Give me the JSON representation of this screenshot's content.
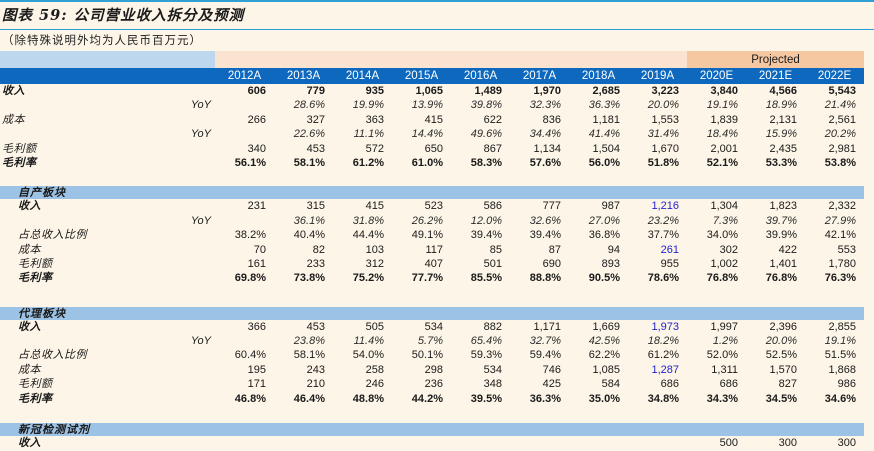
{
  "title": "图表 59:  公司营业收入拆分及预测",
  "subtitle": "（除特殊说明外均为人民币百万元）",
  "projected_label": "Projected",
  "columns": [
    "2012A",
    "2013A",
    "2014A",
    "2015A",
    "2016A",
    "2017A",
    "2018A",
    "2019A",
    "2020E",
    "2021E",
    "2022E"
  ],
  "colors": {
    "page_background": "#FDF6E8",
    "rule_line": "#2FA0D5",
    "header_bar": "#0E69BE",
    "band_label_blue": "#BDD7EE",
    "band_peach": "#FBE3D2",
    "projected_orange": "#F6C8A2",
    "section_bar_blue": "#9CC2E5",
    "highlight_value_blue": "#2222CE"
  },
  "sections": [
    {
      "name": "",
      "rows": [
        {
          "label": "收入",
          "style": "bold",
          "values": [
            "606",
            "779",
            "935",
            "1,065",
            "1,489",
            "1,970",
            "2,685",
            "3,223",
            "3,840",
            "4,566",
            "5,543"
          ]
        },
        {
          "label": "YoY",
          "style": "yoy",
          "values": [
            "",
            "28.6%",
            "19.9%",
            "13.9%",
            "39.8%",
            "32.3%",
            "36.3%",
            "20.0%",
            "19.1%",
            "18.9%",
            "21.4%"
          ]
        },
        {
          "label": "成本",
          "style": "normal",
          "values": [
            "266",
            "327",
            "363",
            "415",
            "622",
            "836",
            "1,181",
            "1,553",
            "1,839",
            "2,131",
            "2,561"
          ]
        },
        {
          "label": "YoY",
          "style": "yoy",
          "values": [
            "",
            "22.6%",
            "11.1%",
            "14.4%",
            "49.6%",
            "34.4%",
            "41.4%",
            "31.4%",
            "18.4%",
            "15.9%",
            "20.2%"
          ]
        },
        {
          "label": "毛利额",
          "style": "normal",
          "values": [
            "340",
            "453",
            "572",
            "650",
            "867",
            "1,134",
            "1,504",
            "1,670",
            "2,001",
            "2,435",
            "2,981"
          ]
        },
        {
          "label": "毛利率",
          "style": "bold",
          "values": [
            "56.1%",
            "58.1%",
            "61.2%",
            "61.0%",
            "58.3%",
            "57.6%",
            "56.0%",
            "51.8%",
            "52.1%",
            "53.3%",
            "53.8%"
          ]
        }
      ]
    },
    {
      "name": "自产板块",
      "rows": [
        {
          "label": "收入",
          "style": "label-bold",
          "values": [
            "231",
            "315",
            "415",
            "523",
            "586",
            "777",
            "987",
            "1,216",
            "1,304",
            "1,823",
            "2,332"
          ],
          "blue_cols": [
            7
          ]
        },
        {
          "label": "YoY",
          "style": "yoy",
          "values": [
            "",
            "36.1%",
            "31.8%",
            "26.2%",
            "12.0%",
            "32.6%",
            "27.0%",
            "23.2%",
            "7.3%",
            "39.7%",
            "27.9%"
          ]
        },
        {
          "label": "占总收入比例",
          "style": "normal",
          "values": [
            "38.2%",
            "40.4%",
            "44.4%",
            "49.1%",
            "39.4%",
            "39.4%",
            "36.8%",
            "37.7%",
            "34.0%",
            "39.9%",
            "42.1%"
          ]
        },
        {
          "label": "成本",
          "style": "normal",
          "values": [
            "70",
            "82",
            "103",
            "117",
            "85",
            "87",
            "94",
            "261",
            "302",
            "422",
            "553"
          ],
          "blue_cols": [
            7
          ]
        },
        {
          "label": "毛利额",
          "style": "normal",
          "values": [
            "161",
            "233",
            "312",
            "407",
            "501",
            "690",
            "893",
            "955",
            "1,002",
            "1,401",
            "1,780"
          ]
        },
        {
          "label": "毛利率",
          "style": "bold",
          "values": [
            "69.8%",
            "73.8%",
            "75.2%",
            "77.7%",
            "85.5%",
            "88.8%",
            "90.5%",
            "78.6%",
            "76.8%",
            "76.8%",
            "76.3%"
          ]
        }
      ]
    },
    {
      "name": "代理板块",
      "rows": [
        {
          "label": "收入",
          "style": "label-bold",
          "values": [
            "366",
            "453",
            "505",
            "534",
            "882",
            "1,171",
            "1,669",
            "1,973",
            "1,997",
            "2,396",
            "2,855"
          ],
          "blue_cols": [
            7
          ]
        },
        {
          "label": "YoY",
          "style": "yoy",
          "values": [
            "",
            "23.8%",
            "11.4%",
            "5.7%",
            "65.4%",
            "32.7%",
            "42.5%",
            "18.2%",
            "1.2%",
            "20.0%",
            "19.1%"
          ]
        },
        {
          "label": "占总收入比例",
          "style": "normal",
          "values": [
            "60.4%",
            "58.1%",
            "54.0%",
            "50.1%",
            "59.3%",
            "59.4%",
            "62.2%",
            "61.2%",
            "52.0%",
            "52.5%",
            "51.5%"
          ]
        },
        {
          "label": "成本",
          "style": "normal",
          "values": [
            "195",
            "243",
            "258",
            "298",
            "534",
            "746",
            "1,085",
            "1,287",
            "1,311",
            "1,570",
            "1,868"
          ],
          "blue_cols": [
            7
          ]
        },
        {
          "label": "毛利额",
          "style": "normal",
          "values": [
            "171",
            "210",
            "246",
            "236",
            "348",
            "425",
            "584",
            "686",
            "686",
            "827",
            "986"
          ]
        },
        {
          "label": "毛利率",
          "style": "bold",
          "values": [
            "46.8%",
            "46.4%",
            "48.8%",
            "44.2%",
            "39.5%",
            "36.3%",
            "35.0%",
            "34.8%",
            "34.3%",
            "34.5%",
            "34.6%"
          ]
        }
      ]
    },
    {
      "name": "新冠检测试剂",
      "rows": [
        {
          "label": "收入",
          "style": "label-bold",
          "values": [
            "",
            "",
            "",
            "",
            "",
            "",
            "",
            "",
            "500",
            "300",
            "300"
          ]
        }
      ]
    }
  ]
}
